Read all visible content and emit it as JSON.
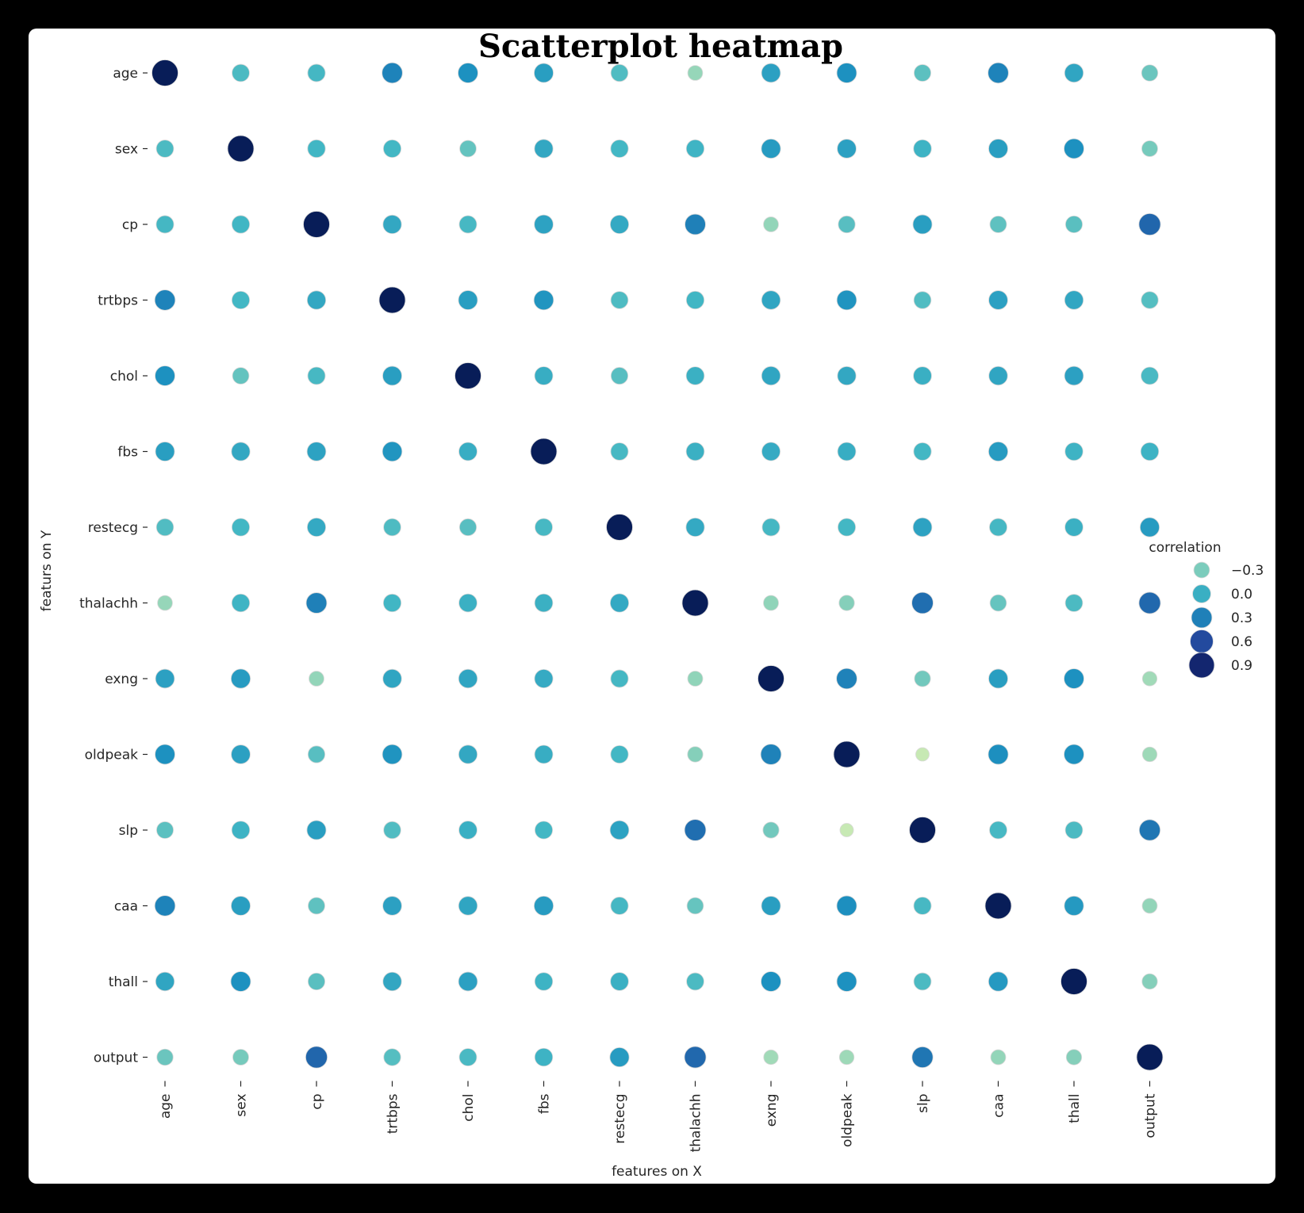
{
  "chart_data": {
    "type": "scatter",
    "subtype": "bubble-heatmap",
    "title": "Scatterplot heatmap",
    "xlabel": "features on X",
    "ylabel": "featurs on Y",
    "features": [
      "age",
      "sex",
      "cp",
      "trtbps",
      "chol",
      "fbs",
      "restecg",
      "thalachh",
      "exng",
      "oldpeak",
      "slp",
      "caa",
      "thall",
      "output"
    ],
    "grid": false,
    "legend": {
      "title": "correlation",
      "position": "right",
      "entries": [
        {
          "label": "−0.3",
          "value": -0.3
        },
        {
          "label": "0.0",
          "value": 0.0
        },
        {
          "label": "0.3",
          "value": 0.3
        },
        {
          "label": "0.6",
          "value": 0.6
        },
        {
          "label": "0.9",
          "value": 0.9
        }
      ]
    },
    "colormap": "YlGnBu",
    "value_range": [
      -0.58,
      1.0
    ],
    "matrix": [
      [
        1.0,
        -0.1,
        -0.07,
        0.28,
        0.21,
        0.12,
        -0.12,
        -0.4,
        0.1,
        0.21,
        -0.17,
        0.28,
        0.07,
        -0.23
      ],
      [
        -0.1,
        1.0,
        -0.05,
        -0.06,
        -0.2,
        0.05,
        -0.06,
        -0.04,
        0.14,
        0.1,
        -0.03,
        0.12,
        0.21,
        -0.28
      ],
      [
        -0.07,
        -0.05,
        1.0,
        0.05,
        -0.08,
        0.09,
        0.04,
        0.3,
        -0.39,
        -0.15,
        0.12,
        -0.18,
        -0.16,
        0.43
      ],
      [
        0.28,
        -0.06,
        0.05,
        1.0,
        0.12,
        0.18,
        -0.11,
        -0.05,
        0.07,
        0.19,
        -0.12,
        0.1,
        0.06,
        -0.14
      ],
      [
        0.21,
        -0.2,
        -0.08,
        0.12,
        1.0,
        0.01,
        -0.15,
        -0.01,
        0.07,
        0.05,
        -0.0,
        0.07,
        0.1,
        -0.09
      ],
      [
        0.12,
        0.05,
        0.09,
        0.18,
        0.01,
        1.0,
        -0.08,
        -0.01,
        0.03,
        0.01,
        -0.06,
        0.14,
        -0.03,
        -0.03
      ],
      [
        -0.12,
        -0.06,
        0.04,
        -0.11,
        -0.15,
        -0.08,
        1.0,
        0.04,
        -0.07,
        -0.06,
        0.09,
        -0.07,
        -0.01,
        0.14
      ],
      [
        -0.4,
        -0.04,
        0.3,
        -0.05,
        -0.01,
        -0.01,
        0.04,
        1.0,
        -0.38,
        -0.34,
        0.39,
        -0.21,
        -0.1,
        0.42
      ],
      [
        0.1,
        0.14,
        -0.39,
        0.07,
        0.07,
        0.03,
        -0.07,
        -0.38,
        1.0,
        0.29,
        -0.26,
        0.12,
        0.21,
        -0.44
      ],
      [
        0.21,
        0.1,
        -0.15,
        0.19,
        0.05,
        0.01,
        -0.06,
        -0.34,
        0.29,
        1.0,
        -0.58,
        0.22,
        0.21,
        -0.43
      ],
      [
        -0.17,
        -0.03,
        0.12,
        -0.12,
        -0.0,
        -0.06,
        0.09,
        0.39,
        -0.26,
        -0.58,
        1.0,
        -0.08,
        -0.1,
        0.35
      ],
      [
        0.28,
        0.12,
        -0.18,
        0.1,
        0.07,
        0.14,
        -0.07,
        -0.21,
        0.12,
        0.22,
        -0.08,
        1.0,
        0.15,
        -0.39
      ],
      [
        0.07,
        0.21,
        -0.16,
        0.06,
        0.1,
        -0.03,
        -0.01,
        -0.1,
        0.21,
        0.21,
        -0.1,
        0.15,
        1.0,
        -0.34
      ],
      [
        -0.23,
        -0.28,
        0.43,
        -0.14,
        -0.09,
        -0.03,
        0.14,
        0.42,
        -0.44,
        -0.43,
        0.35,
        -0.39,
        -0.34,
        1.0
      ]
    ]
  },
  "colors": {
    "background": "#000000",
    "card": "#ffffff",
    "text": "#262626",
    "colormap_stops": [
      "#c7e9b4",
      "#7fcdbb",
      "#41b6c4",
      "#1d91c0",
      "#225ea8",
      "#253494",
      "#081d58"
    ]
  }
}
